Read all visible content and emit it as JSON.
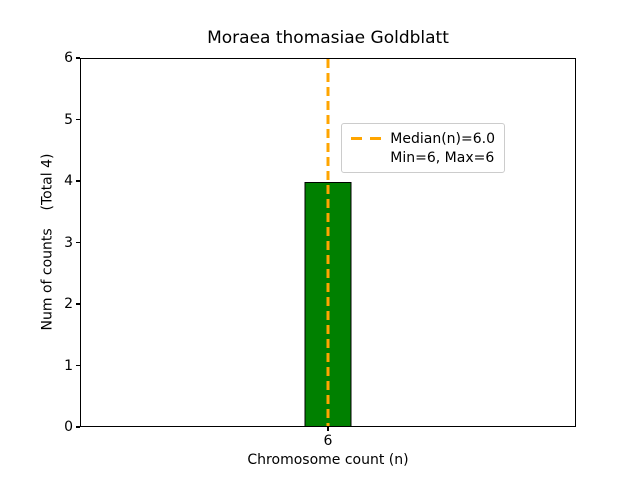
{
  "chart_data": {
    "type": "bar",
    "title": "Moraea thomasiae Goldblatt",
    "xlabel": "Chromosome count (n)",
    "ylabel": "Num of counts    (Total 4)",
    "categories": [
      "6"
    ],
    "values": [
      4
    ],
    "total": 4,
    "ylim": [
      0,
      6
    ],
    "yticks": [
      0,
      1,
      2,
      3,
      4,
      5,
      6
    ],
    "xticks": [
      "6"
    ],
    "grid": false,
    "bar_color": "#008000",
    "bar_edge_color": "#000000",
    "median_line": {
      "x": 6,
      "value": 6.0,
      "color": "#FFA500",
      "style": "dashed"
    },
    "legend": {
      "position": "upper-right",
      "entries": [
        {
          "marker": "dashed-line",
          "color": "#FFA500",
          "label": "Median(n)=6.0"
        },
        {
          "marker": "none",
          "color": "",
          "label": "Min=6, Max=6"
        }
      ]
    }
  }
}
